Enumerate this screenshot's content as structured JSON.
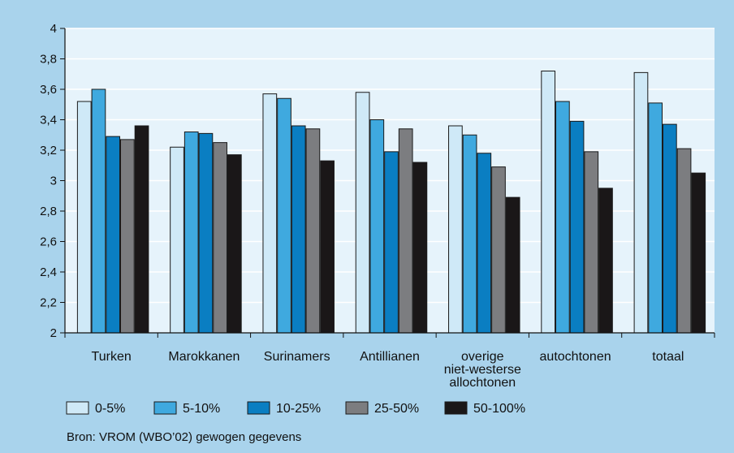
{
  "chart_data": {
    "type": "bar",
    "categories": [
      [
        "Turken"
      ],
      [
        "Marokkanen"
      ],
      [
        "Surinamers"
      ],
      [
        "Antillianen"
      ],
      [
        "overige",
        "niet-westerse",
        "allochtonen"
      ],
      [
        "autochtonen"
      ],
      [
        "totaal"
      ]
    ],
    "series": [
      {
        "name": "0-5%",
        "color": "#cfe9f7",
        "values": [
          3.52,
          3.22,
          3.57,
          3.58,
          3.36,
          3.72,
          3.71
        ]
      },
      {
        "name": "5-10%",
        "color": "#3fa9df",
        "values": [
          3.6,
          3.32,
          3.54,
          3.4,
          3.3,
          3.52,
          3.51
        ]
      },
      {
        "name": "10-25%",
        "color": "#0a7ec2",
        "values": [
          3.29,
          3.31,
          3.36,
          3.19,
          3.18,
          3.39,
          3.37
        ]
      },
      {
        "name": "25-50%",
        "color": "#7c7d80",
        "values": [
          3.27,
          3.25,
          3.34,
          3.34,
          3.09,
          3.19,
          3.21
        ]
      },
      {
        "name": "50-100%",
        "color": "#1a1718",
        "values": [
          3.36,
          3.17,
          3.13,
          3.12,
          2.89,
          2.95,
          3.05
        ]
      }
    ],
    "yticks": [
      "2",
      "2,2",
      "2,4",
      "2,6",
      "2,8",
      "3",
      "3,2",
      "3,4",
      "3,6",
      "3,8",
      "4"
    ],
    "ylim": [
      2,
      4
    ],
    "grid": true,
    "legend": "bottom",
    "title": "",
    "xlabel": "",
    "ylabel": ""
  },
  "source": "Bron: VROM (WBO’02) gewogen gegevens"
}
